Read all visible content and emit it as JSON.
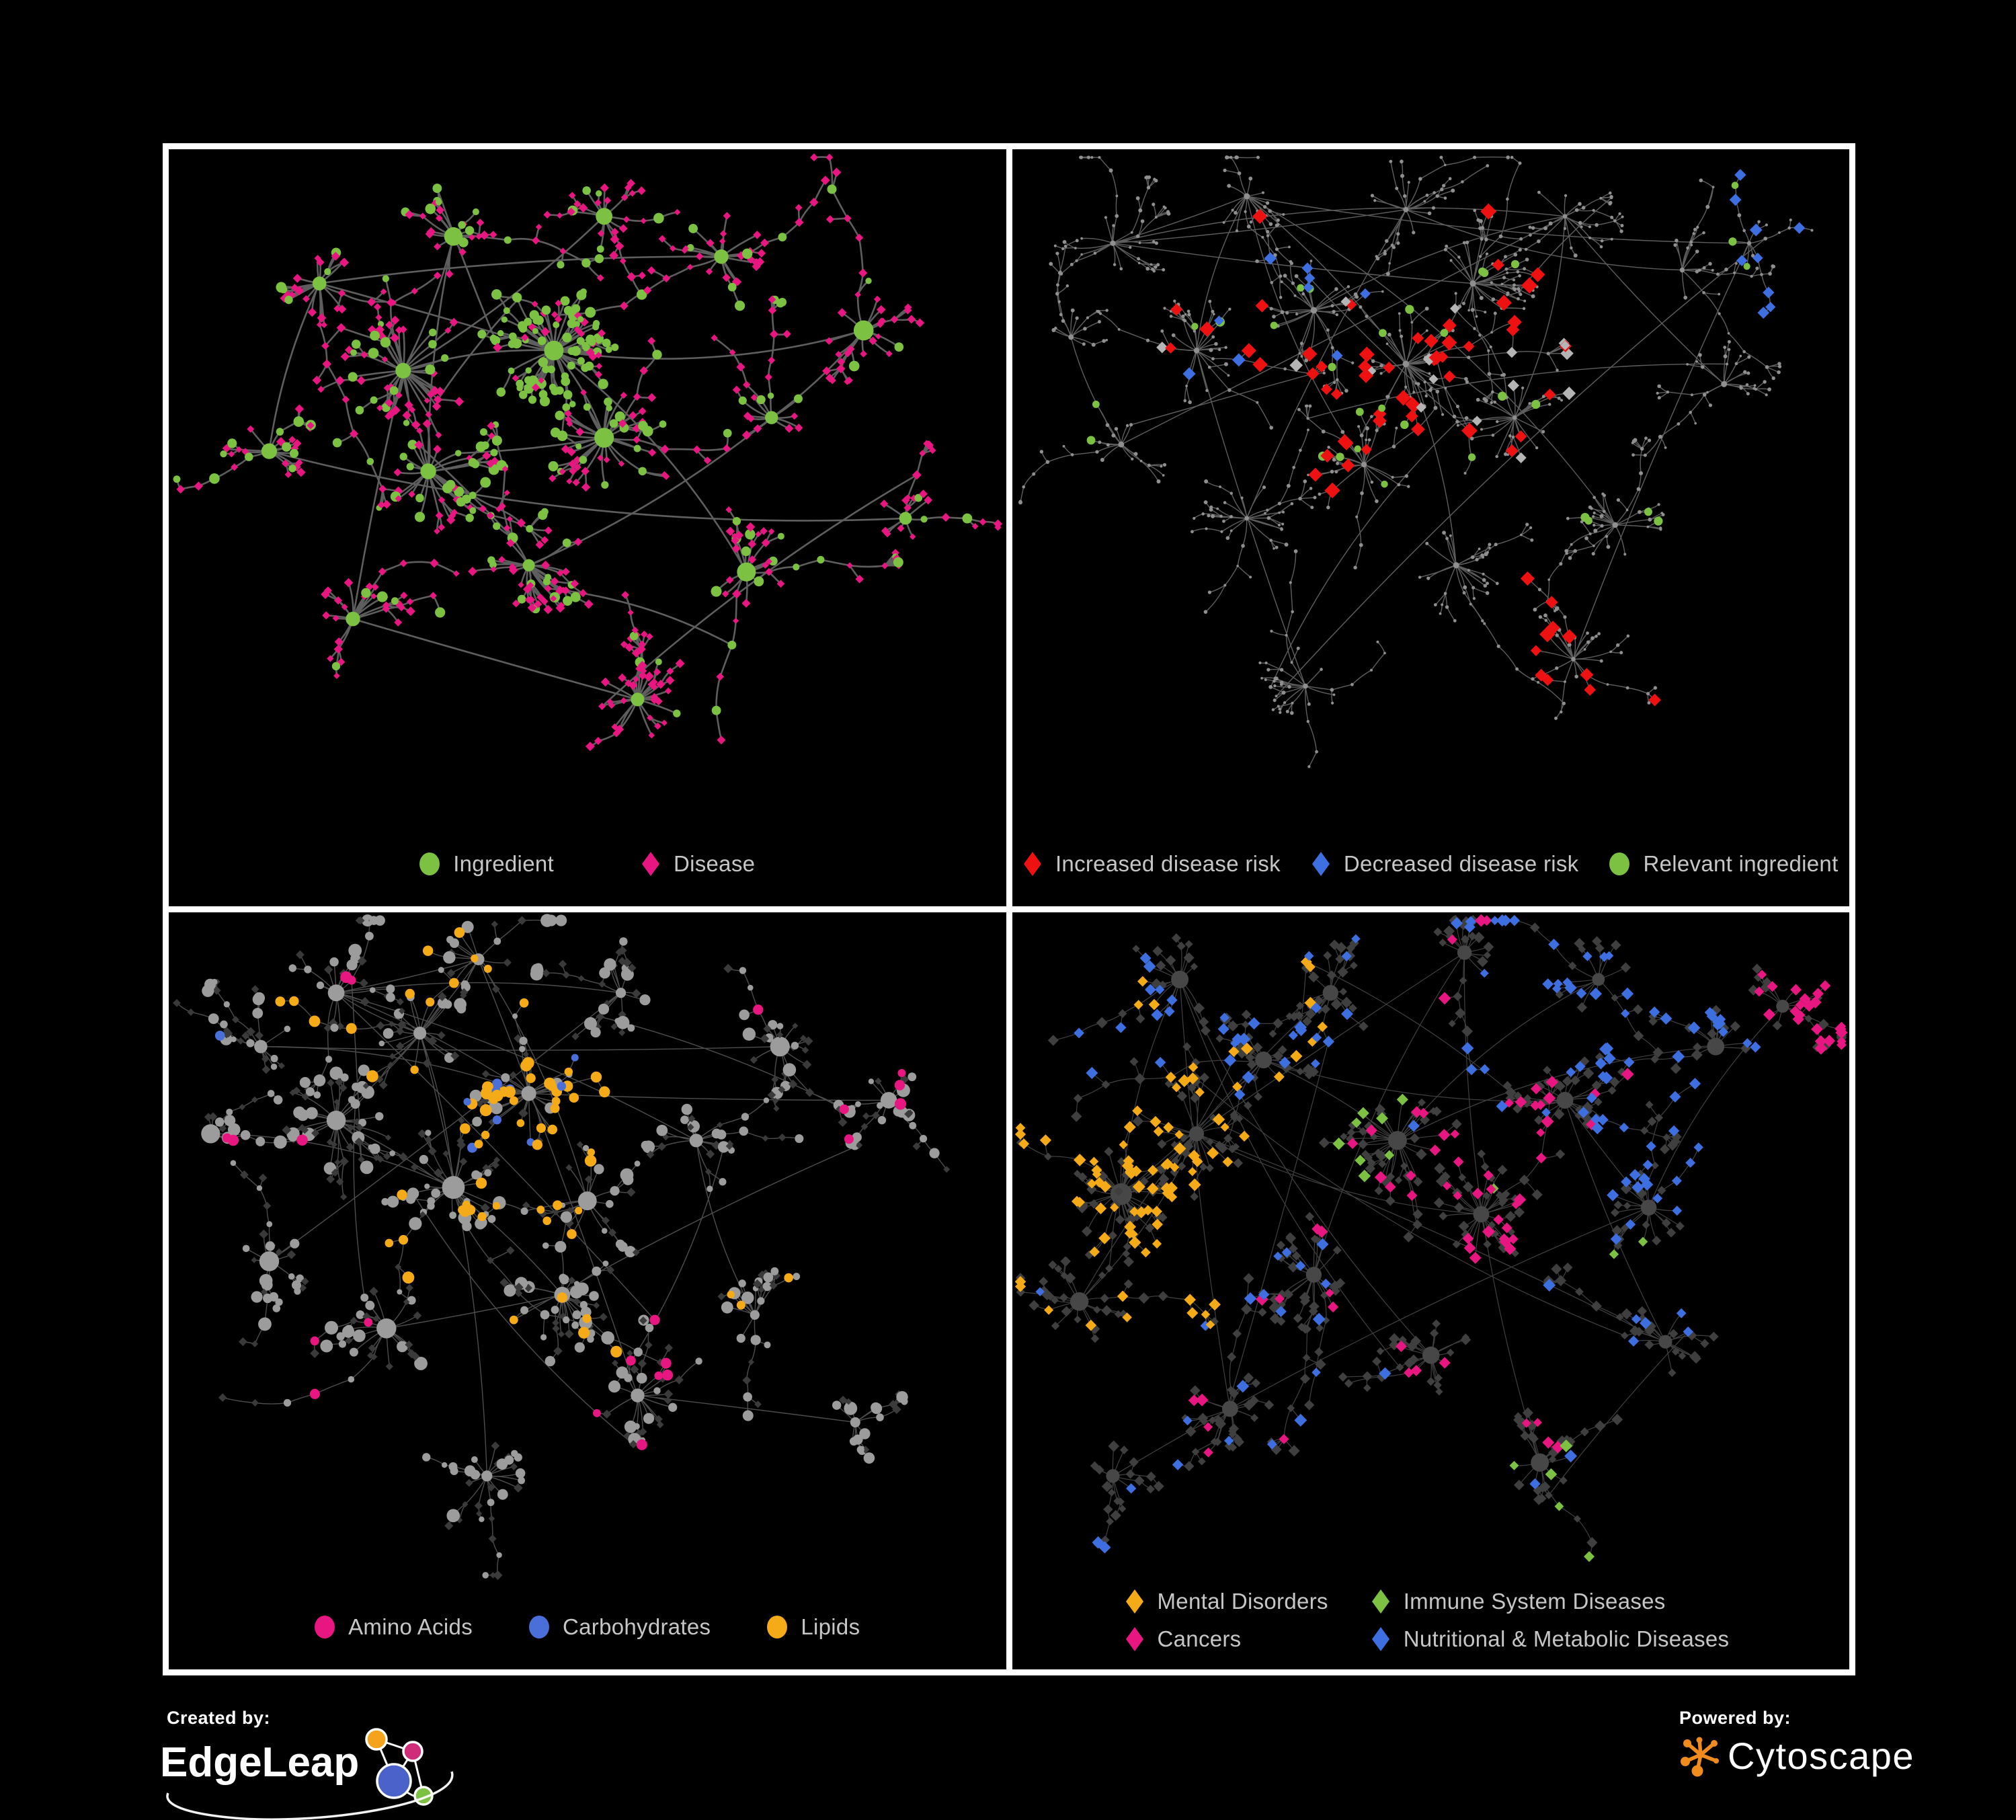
{
  "figure": {
    "background": "#000000",
    "legend_text_color": "#c6c6c6",
    "node_colors": {
      "green": "#7cc142",
      "magenta": "#e81680",
      "red": "#ee1111",
      "blue": "#3e6fe0",
      "carb_blue": "#4a6fd8",
      "amber": "#f5ab17",
      "silver": "#b5b5b5",
      "gray": "#9c9c9c",
      "dim": "#8f8f8f",
      "dark": "#3f3f3f",
      "darker": "#3a3a3a",
      "hub_dark": "#474747"
    },
    "panels": [
      {
        "name": "ingredient-disease-network",
        "legend": [
          {
            "label": "Ingredient",
            "shape": "circle",
            "color": "#7cc142"
          },
          {
            "label": "Disease",
            "shape": "diamond",
            "color": "#e81680"
          }
        ]
      },
      {
        "name": "disease-risk-network",
        "legend": [
          {
            "label": "Increased disease risk",
            "shape": "diamond",
            "color": "#ee1111"
          },
          {
            "label": "Decreased disease risk",
            "shape": "diamond",
            "color": "#3e6fe0"
          },
          {
            "label": "Relevant ingredient",
            "shape": "circle",
            "color": "#7cc142"
          }
        ]
      },
      {
        "name": "ingredient-classes-network",
        "legend": [
          {
            "label": "Amino Acids",
            "shape": "circle",
            "color": "#e81680"
          },
          {
            "label": "Carbohydrates",
            "shape": "circle",
            "color": "#4a6fd8"
          },
          {
            "label": "Lipids",
            "shape": "circle",
            "color": "#f5ab17"
          }
        ]
      },
      {
        "name": "disease-classes-network",
        "legend": [
          {
            "label": "Mental Disorders",
            "shape": "diamond",
            "color": "#f5ab17"
          },
          {
            "label": "Immune System Diseases",
            "shape": "diamond",
            "color": "#7cc142"
          },
          {
            "label": "Cancers",
            "shape": "diamond",
            "color": "#e81680"
          },
          {
            "label": "Nutritional & Metabolic Diseases",
            "shape": "diamond",
            "color": "#3e6fe0"
          }
        ]
      }
    ],
    "footer": {
      "created_by_label": "Created by:",
      "created_by_brand": "EdgeLeap",
      "powered_by_label": "Powered by:",
      "powered_by_brand": "Cytoscape",
      "edgeleap_colors": {
        "orange": "#f5a31c",
        "pink": "#cf2d7a",
        "blue": "#4a62c9",
        "green": "#7cc142"
      },
      "cytoscape_color": "#f08c1e"
    }
  }
}
